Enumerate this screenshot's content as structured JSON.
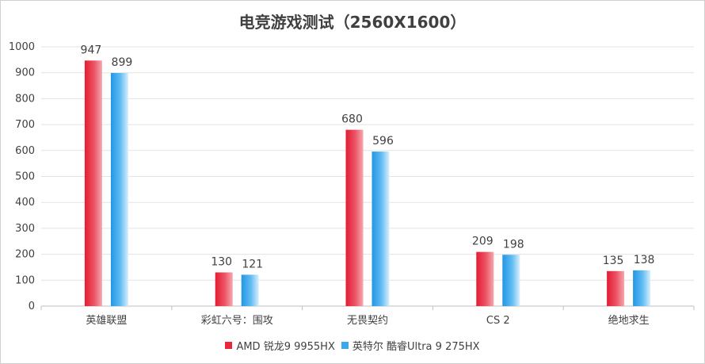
{
  "chart_data": {
    "type": "bar",
    "title": "电竞游戏测试（2560X1600）",
    "categories": [
      "英雄联盟",
      "彩虹六号：围攻",
      "无畏契约",
      "CS 2",
      "绝地求生"
    ],
    "series": [
      {
        "name": "AMD 锐龙9 9955HX",
        "values": [
          947,
          130,
          680,
          209,
          135
        ],
        "color": "#e8283a"
      },
      {
        "name": "英特尔 酷睿Ultra 9 275HX",
        "values": [
          899,
          121,
          596,
          198,
          138
        ],
        "color": "#3aa8ec"
      }
    ],
    "ylim": [
      0,
      1000
    ],
    "yticks": [
      0,
      100,
      200,
      300,
      400,
      500,
      600,
      700,
      800,
      900,
      1000
    ],
    "grid": true,
    "legend_position": "bottom"
  }
}
